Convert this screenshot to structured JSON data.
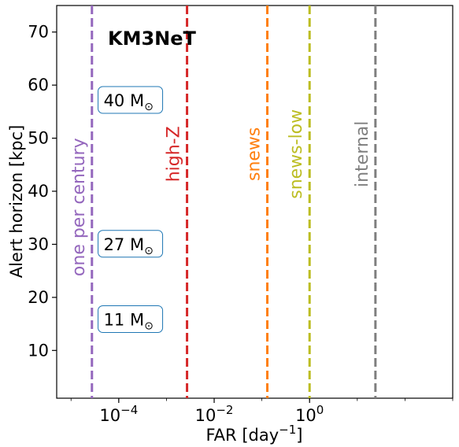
{
  "chart_data": {
    "type": "line",
    "title": "KM3NeT",
    "xlabel": "FAR [day⁻¹]",
    "ylabel": "Alert horizon [kpc]",
    "xscale": "log",
    "xlim": [
      5e-06,
      1000
    ],
    "ylim": [
      1,
      75
    ],
    "xticks": [
      {
        "value": 0.0001,
        "base": "10",
        "exp": "−4"
      },
      {
        "value": 0.01,
        "base": "10",
        "exp": "−2"
      },
      {
        "value": 1,
        "base": "10",
        "exp": "0"
      }
    ],
    "yticks": [
      10,
      20,
      30,
      40,
      50,
      60,
      70
    ],
    "grid": false,
    "vertical_lines": [
      {
        "name": "one per century",
        "x": 2.74e-05,
        "color": "#9467bd",
        "label_y": 37
      },
      {
        "name": "high-Z",
        "x": 0.0027,
        "color": "#d62728",
        "label_y": 47
      },
      {
        "name": "snews",
        "x": 0.13,
        "color": "#ff7f0e",
        "label_y": 47
      },
      {
        "name": "snews-low",
        "x": 1.0,
        "color": "#bcbd22",
        "label_y": 47
      },
      {
        "name": "internal",
        "x": 24,
        "color": "#7f7f7f",
        "label_y": 47
      }
    ],
    "annotations": [
      {
        "mass": "40",
        "unit": "M",
        "sub": "⊙",
        "x": 0.000175,
        "y": 57.2
      },
      {
        "mass": "27",
        "unit": "M",
        "sub": "⊙",
        "x": 0.000175,
        "y": 30.1
      },
      {
        "mass": "11",
        "unit": "M",
        "sub": "⊙",
        "x": 0.000175,
        "y": 15.9
      }
    ],
    "annotation_box_color": "#1f77b4"
  }
}
